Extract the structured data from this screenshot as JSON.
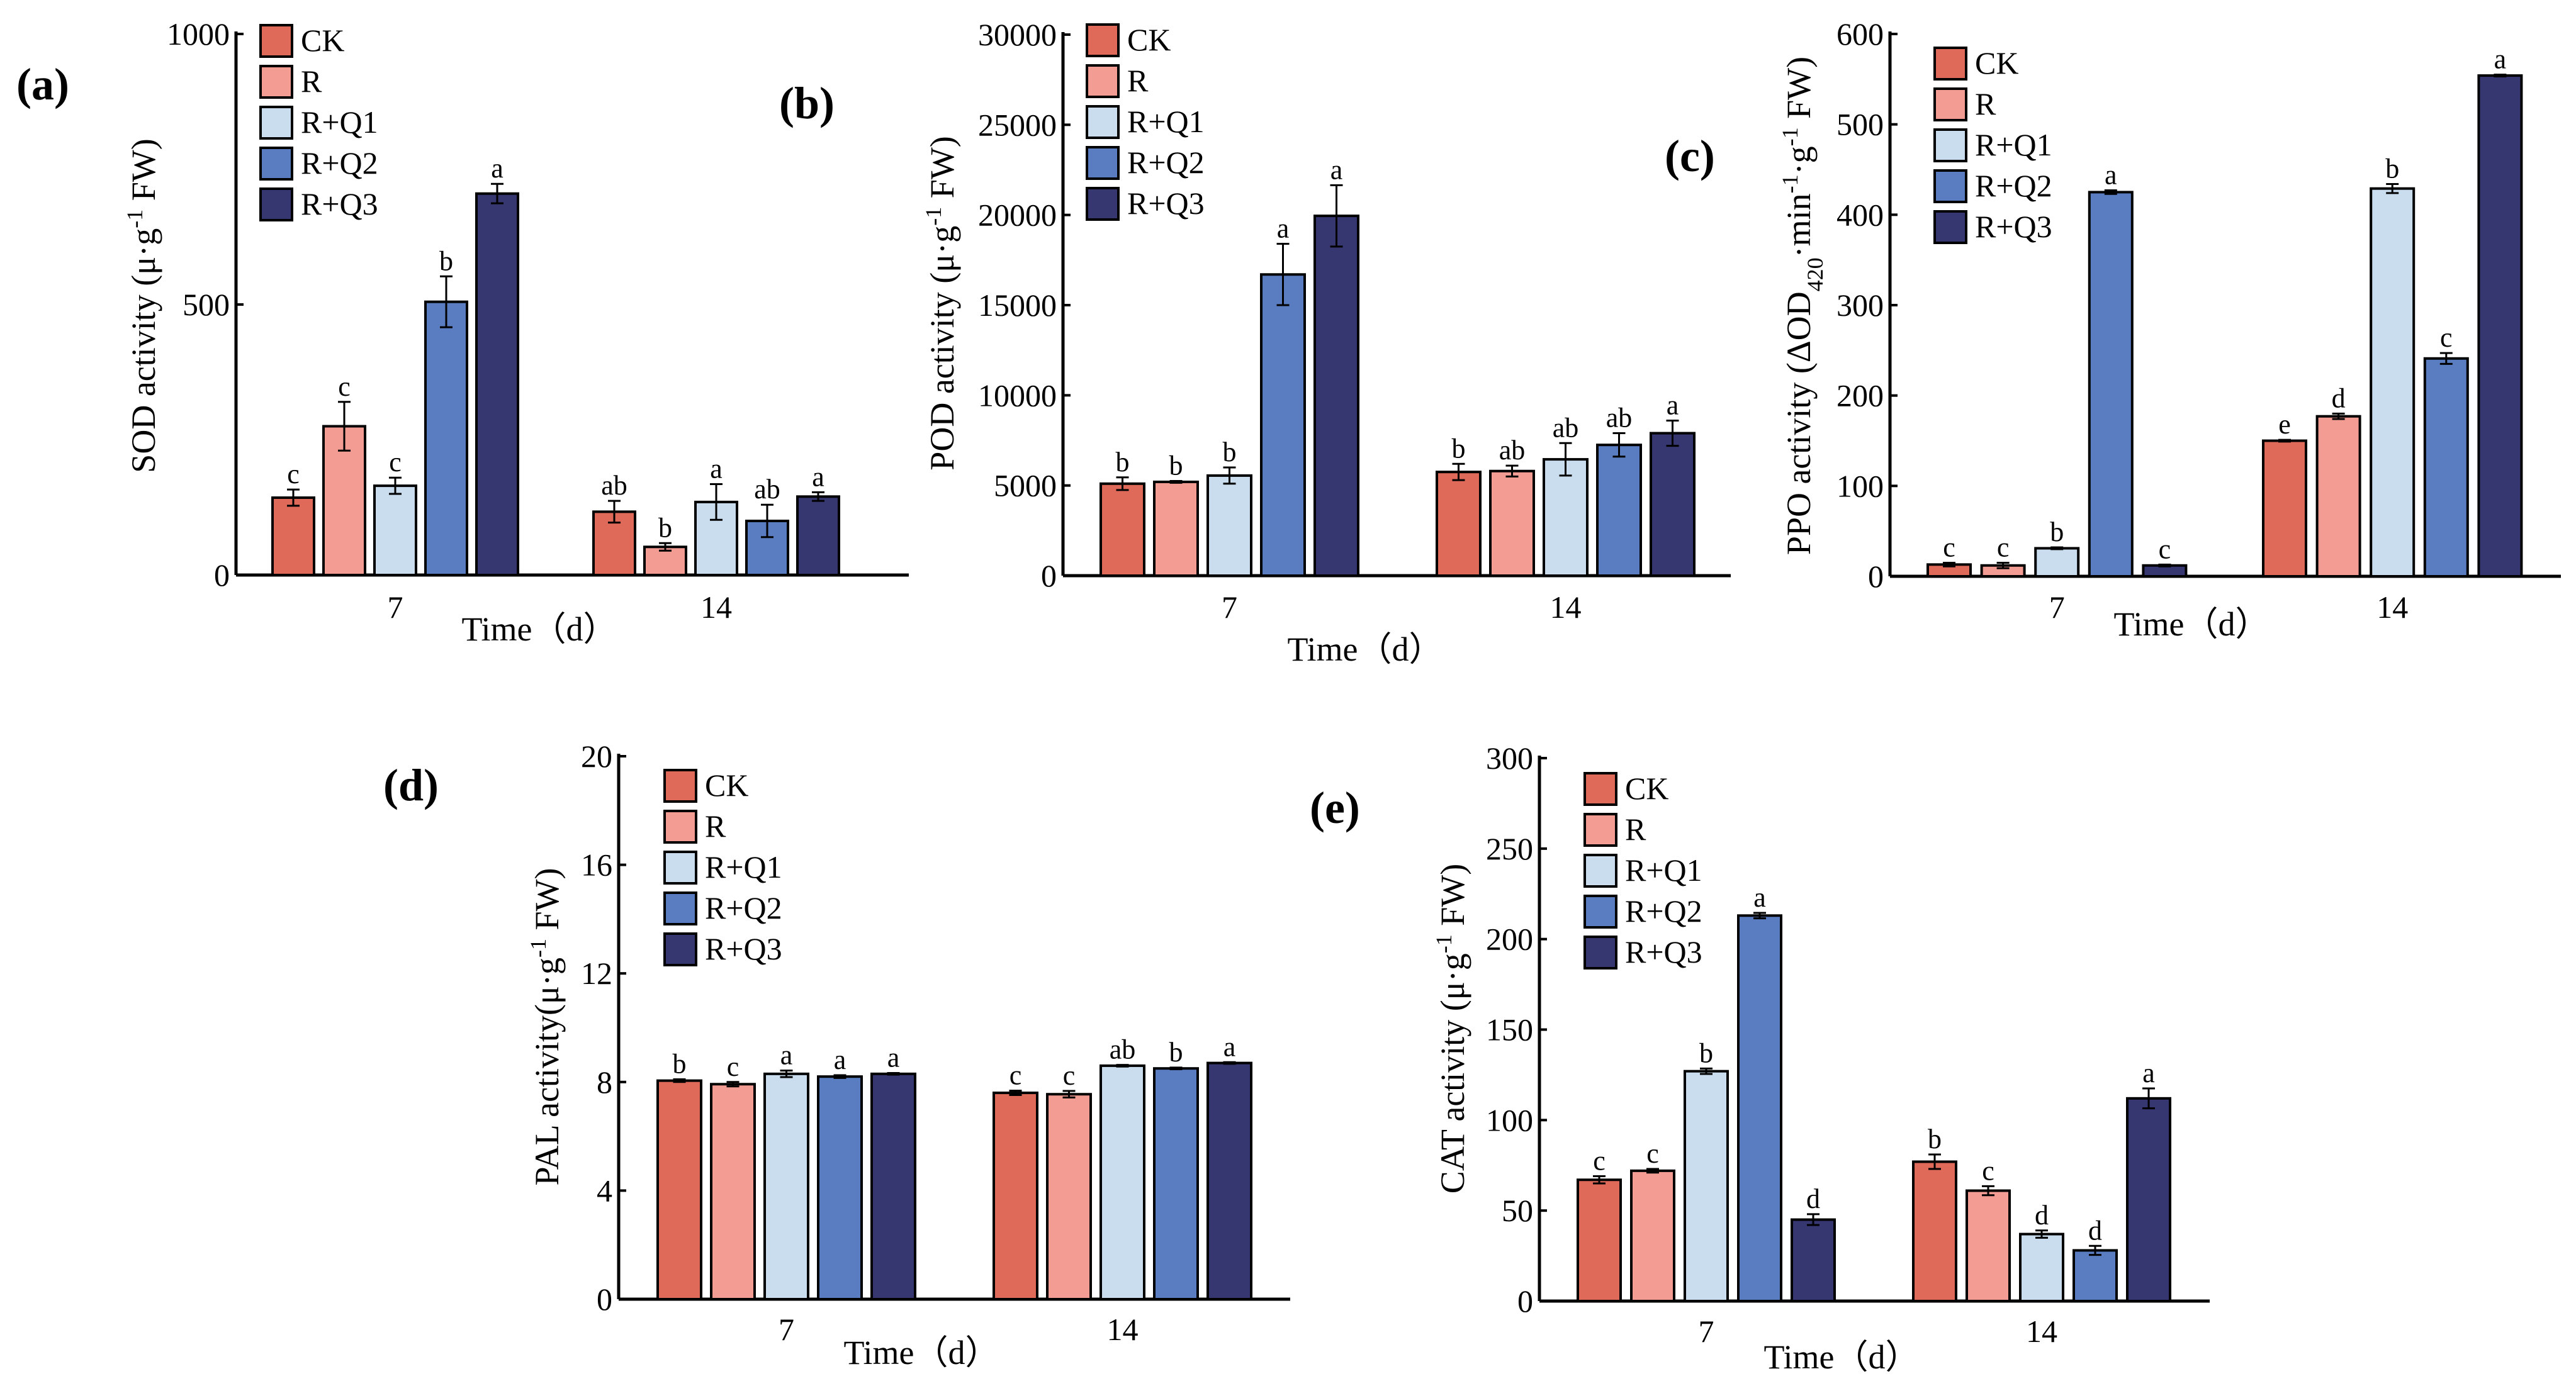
{
  "colors": {
    "CK": "#E06A5A",
    "R": "#F29C93",
    "R+Q1": "#C9DDEE",
    "R+Q2": "#5A7DC1",
    "R+Q3": "#363670"
  },
  "chart_data": [
    {
      "type": "bar",
      "panel_label": "(a)",
      "categories": [
        "7",
        "14"
      ],
      "xlabel": "Time（d）",
      "ylabel": [
        {
          "t": "SOD activity (μ·g"
        },
        {
          "t": "-1",
          "sup": true
        },
        {
          "t": " FW)"
        }
      ],
      "ylim": [
        0,
        1000
      ],
      "yticks": [
        "0",
        "500",
        "1000"
      ],
      "ytick_values": [
        0,
        500,
        1000
      ],
      "legend": "top-left",
      "series": [
        {
          "name": "CK",
          "values": [
            143,
            117
          ],
          "errors": [
            15,
            20
          ],
          "letters": [
            "c",
            "ab"
          ]
        },
        {
          "name": "R",
          "values": [
            275,
            52
          ],
          "errors": [
            45,
            7
          ],
          "letters": [
            "c",
            "b"
          ]
        },
        {
          "name": "R+Q1",
          "values": [
            165,
            135
          ],
          "errors": [
            15,
            33
          ],
          "letters": [
            "c",
            "a"
          ]
        },
        {
          "name": "R+Q2",
          "values": [
            505,
            100
          ],
          "errors": [
            47,
            30
          ],
          "letters": [
            "b",
            "ab"
          ]
        },
        {
          "name": "R+Q3",
          "values": [
            705,
            145
          ],
          "errors": [
            18,
            8
          ],
          "letters": [
            "a",
            "a"
          ]
        }
      ]
    },
    {
      "type": "bar",
      "panel_label": "(b)",
      "categories": [
        "7",
        "14"
      ],
      "xlabel": "Time（d）",
      "ylabel": [
        {
          "t": "POD activity (μ·g"
        },
        {
          "t": "-1",
          "sup": true
        },
        {
          "t": " FW)"
        }
      ],
      "ylim": [
        0,
        30000
      ],
      "yticks": [
        "0",
        "5000",
        "10000",
        "15000",
        "20000",
        "25000",
        "30000"
      ],
      "ytick_values": [
        0,
        5000,
        10000,
        15000,
        20000,
        25000,
        30000
      ],
      "legend": "top-left",
      "series": [
        {
          "name": "CK",
          "values": [
            5100,
            5750
          ],
          "errors": [
            350,
            450
          ],
          "letters": [
            "b",
            "b"
          ]
        },
        {
          "name": "R",
          "values": [
            5200,
            5800
          ],
          "errors": [
            50,
            300
          ],
          "letters": [
            "b",
            "ab"
          ]
        },
        {
          "name": "R+Q1",
          "values": [
            5550,
            6450
          ],
          "errors": [
            450,
            900
          ],
          "letters": [
            "b",
            "ab"
          ]
        },
        {
          "name": "R+Q2",
          "values": [
            16700,
            7250
          ],
          "errors": [
            1700,
            650
          ],
          "letters": [
            "a",
            "ab"
          ]
        },
        {
          "name": "R+Q3",
          "values": [
            19950,
            7900
          ],
          "errors": [
            1700,
            700
          ],
          "letters": [
            "a",
            "a"
          ]
        }
      ]
    },
    {
      "type": "bar",
      "panel_label": "(c)",
      "categories": [
        "7",
        "14"
      ],
      "xlabel": "Time（d）",
      "ylabel": [
        {
          "t": "PPO activity (ΔOD"
        },
        {
          "t": "420",
          "sub": true
        },
        {
          "t": "·min"
        },
        {
          "t": "-1",
          "sup": true
        },
        {
          "t": "·g"
        },
        {
          "t": "-1",
          "sup": true
        },
        {
          "t": " FW)"
        }
      ],
      "ylim": [
        0,
        600
      ],
      "yticks": [
        "0",
        "100",
        "200",
        "300",
        "400",
        "500",
        "600"
      ],
      "ytick_values": [
        0,
        100,
        200,
        300,
        400,
        500,
        600
      ],
      "legend": "top-left",
      "series": [
        {
          "name": "CK",
          "values": [
            13,
            150
          ],
          "errors": [
            2,
            1
          ],
          "letters": [
            "c",
            "e"
          ]
        },
        {
          "name": "R",
          "values": [
            12,
            177
          ],
          "errors": [
            3,
            3
          ],
          "letters": [
            "c",
            "d"
          ]
        },
        {
          "name": "R+Q1",
          "values": [
            31,
            429
          ],
          "errors": [
            1,
            5
          ],
          "letters": [
            "b",
            "b"
          ]
        },
        {
          "name": "R+Q2",
          "values": [
            425,
            241
          ],
          "errors": [
            2,
            6
          ],
          "letters": [
            "a",
            "c"
          ]
        },
        {
          "name": "R+Q3",
          "values": [
            12,
            554
          ],
          "errors": [
            1,
            1
          ],
          "letters": [
            "c",
            "a"
          ]
        }
      ]
    },
    {
      "type": "bar",
      "panel_label": "(d)",
      "categories": [
        "7",
        "14"
      ],
      "xlabel": "Time（d）",
      "ylabel": [
        {
          "t": "PAL activity(μ·g"
        },
        {
          "t": "-1",
          "sup": true
        },
        {
          "t": " FW)"
        }
      ],
      "ylim": [
        0,
        20
      ],
      "yticks": [
        "0",
        "4",
        "8",
        "12",
        "16",
        "20"
      ],
      "ytick_values": [
        0,
        4,
        8,
        12,
        16,
        20
      ],
      "legend": "top-left",
      "series": [
        {
          "name": "CK",
          "values": [
            8.05,
            7.6
          ],
          "errors": [
            0.05,
            0.08
          ],
          "letters": [
            "b",
            "c"
          ]
        },
        {
          "name": "R",
          "values": [
            7.92,
            7.55
          ],
          "errors": [
            0.08,
            0.12
          ],
          "letters": [
            "c",
            "c"
          ]
        },
        {
          "name": "R+Q1",
          "values": [
            8.3,
            8.6
          ],
          "errors": [
            0.12,
            0.03
          ],
          "letters": [
            "a",
            "ab"
          ]
        },
        {
          "name": "R+Q2",
          "values": [
            8.2,
            8.5
          ],
          "errors": [
            0.05,
            0.03
          ],
          "letters": [
            "a",
            "b"
          ]
        },
        {
          "name": "R+Q3",
          "values": [
            8.3,
            8.7
          ],
          "errors": [
            0.03,
            0.03
          ],
          "letters": [
            "a",
            "a"
          ]
        }
      ]
    },
    {
      "type": "bar",
      "panel_label": "(e)",
      "categories": [
        "7",
        "14"
      ],
      "xlabel": "Time（d）",
      "ylabel": [
        {
          "t": "CAT activity (μ·g"
        },
        {
          "t": "-1",
          "sup": true
        },
        {
          "t": " FW)"
        }
      ],
      "ylim": [
        0,
        300
      ],
      "yticks": [
        "0",
        "50",
        "100",
        "150",
        "200",
        "250",
        "300"
      ],
      "ytick_values": [
        0,
        50,
        100,
        150,
        200,
        250,
        300
      ],
      "legend": "top-left",
      "series": [
        {
          "name": "CK",
          "values": [
            67,
            77
          ],
          "errors": [
            2,
            4
          ],
          "letters": [
            "c",
            "b"
          ]
        },
        {
          "name": "R",
          "values": [
            72,
            61
          ],
          "errors": [
            1,
            2.5
          ],
          "letters": [
            "c",
            "c"
          ]
        },
        {
          "name": "R+Q1",
          "values": [
            127,
            37
          ],
          "errors": [
            1.5,
            2
          ],
          "letters": [
            "b",
            "d"
          ]
        },
        {
          "name": "R+Q2",
          "values": [
            213,
            28
          ],
          "errors": [
            1.5,
            2.5
          ],
          "letters": [
            "a",
            "d"
          ]
        },
        {
          "name": "R+Q3",
          "values": [
            45,
            112
          ],
          "errors": [
            3,
            5.5
          ],
          "letters": [
            "d",
            "a"
          ]
        }
      ]
    }
  ]
}
